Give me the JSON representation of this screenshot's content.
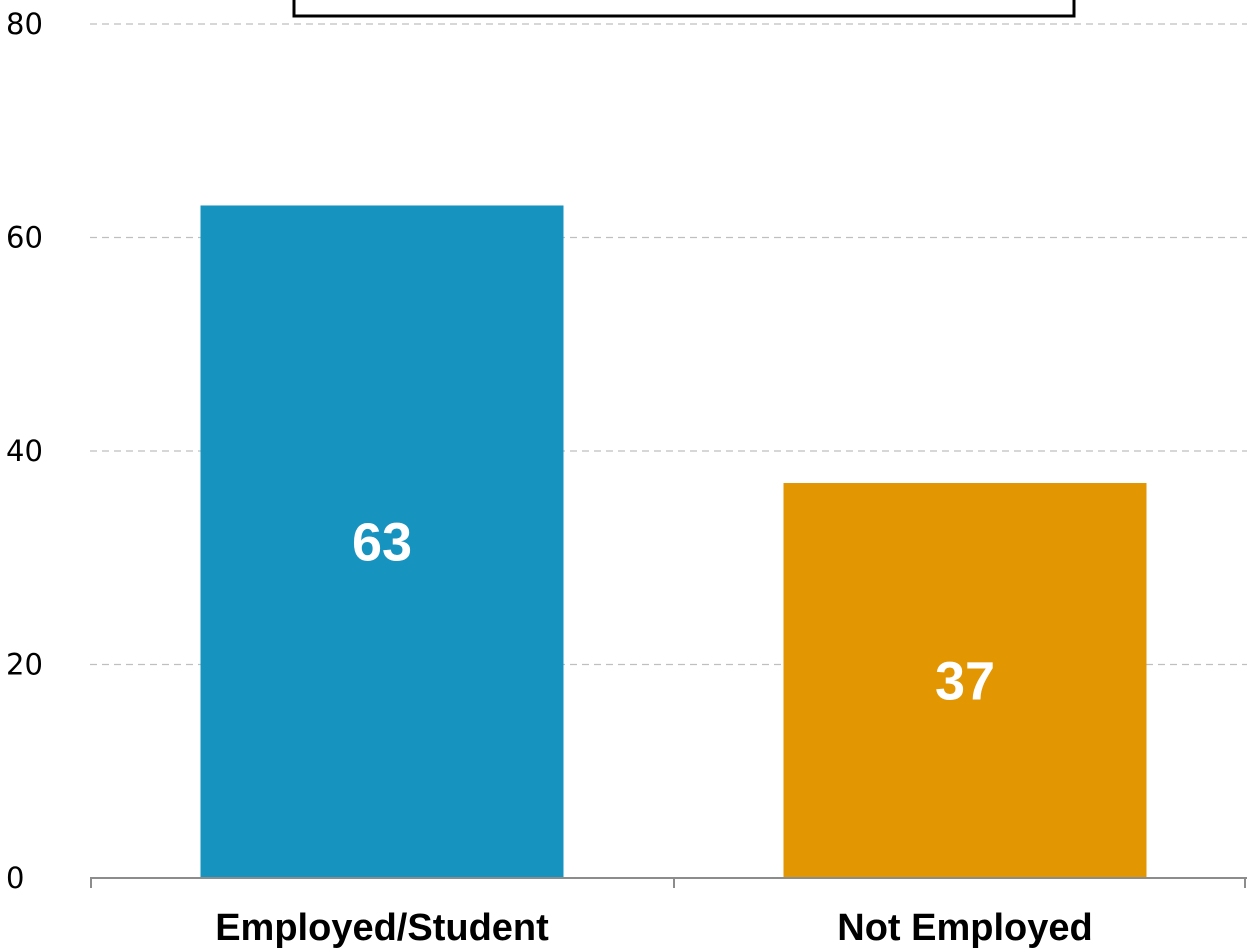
{
  "chart_data": {
    "type": "bar",
    "categories": [
      "Employed/Student",
      "Not Employed"
    ],
    "values": [
      63,
      37
    ],
    "value_labels": [
      "63",
      "37"
    ],
    "colors": [
      "#1793c0",
      "#e29601"
    ],
    "ylim": [
      0,
      80
    ],
    "yticks": [
      "0",
      "20",
      "40",
      "60",
      "80"
    ],
    "grid": true,
    "title": "",
    "xlabel": "",
    "ylabel": ""
  }
}
